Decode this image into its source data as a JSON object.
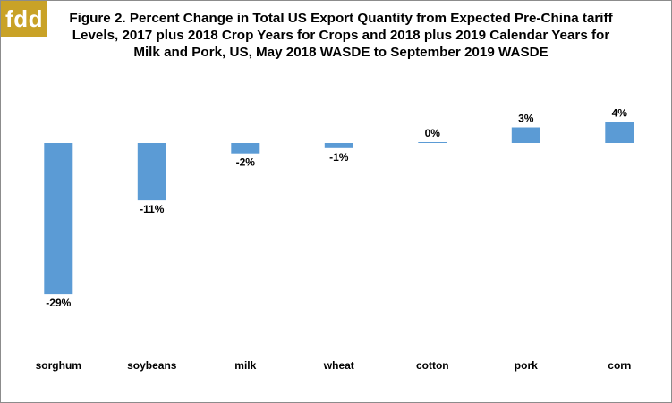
{
  "logo": {
    "text": "fdd",
    "color": "#c9a227"
  },
  "chart_data": {
    "type": "bar",
    "title": "Figure 2.  Percent Change in Total US Export Quantity from Expected Pre-China tariff Levels, 2017 plus 2018 Crop Years for Crops and 2018 plus 2019 Calendar Years for Milk and Pork, US, May 2018 WASDE to September 2019 WASDE",
    "categories": [
      "sorghum",
      "soybeans",
      "milk",
      "wheat",
      "cotton",
      "pork",
      "corn"
    ],
    "values": [
      -29,
      -11,
      -2,
      -1,
      0,
      3,
      4
    ],
    "data_labels": [
      "-29%",
      "-11%",
      "-2%",
      "-1%",
      "0%",
      "3%",
      "4%"
    ],
    "unit": "%",
    "xlabel": "",
    "ylabel": "",
    "ylim": [
      -29,
      4
    ],
    "grid": false,
    "legend": "none",
    "bar_color": "#5b9bd5"
  }
}
